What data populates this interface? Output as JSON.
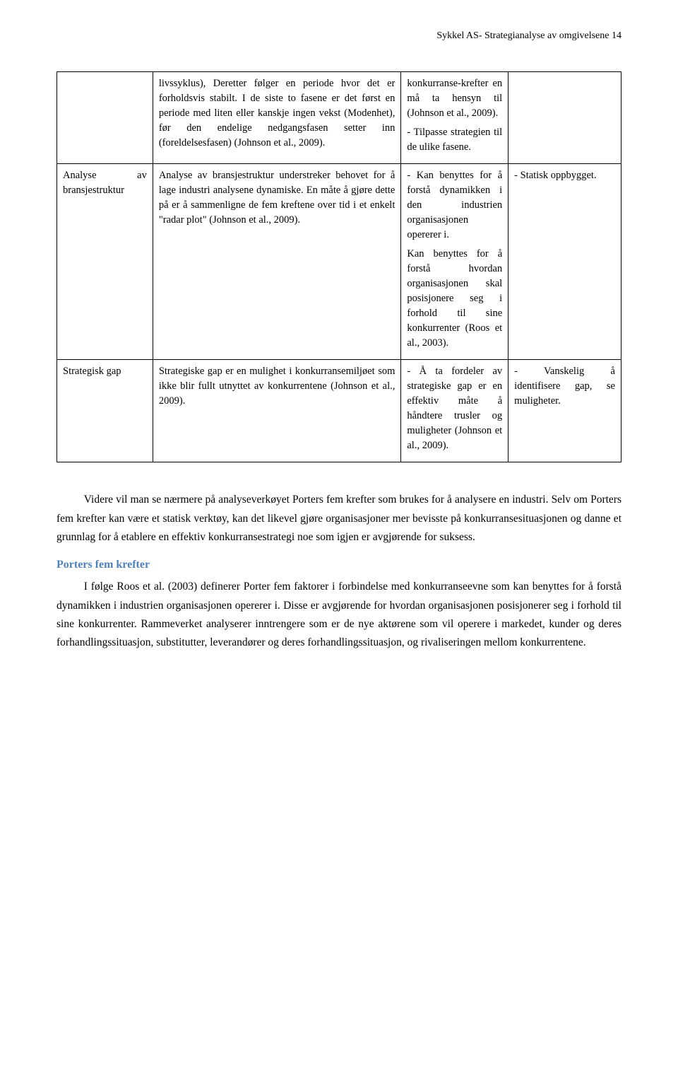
{
  "header": "Sykkel AS- Strategianalyse av omgivelsene   14",
  "table": {
    "rows": [
      {
        "c1": "",
        "c2": "livssyklus), Deretter følger en periode hvor det er forholdsvis stabilt. I de siste to fasene er det først en periode med liten eller kanskje ingen vekst (Modenhet), før den endelige nedgangsfasen setter inn (foreldelsesfasen) (Johnson et al., 2009).",
        "c3_p1": "konkurranse-krefter en må ta hensyn til (Johnson et al., 2009).",
        "c3_p2": "- Tilpasse strategien til de ulike fasene.",
        "c4": ""
      },
      {
        "c1": "Analyse av bransjestruktur",
        "c2": "Analyse av bransjestruktur understreker behovet for å lage industri analysene dynamiske. En måte å gjøre dette på er å sammenligne de fem kreftene over tid i et enkelt \"radar plot\" (Johnson et al., 2009).",
        "c3_p1": "- Kan benyttes for å forstå dynamikken i den industrien organisasjonen opererer i.",
        "c3_p2": "Kan benyttes for å forstå hvordan organisasjonen skal posisjonere seg i forhold til sine konkurrenter (Roos et al., 2003).",
        "c4": "- Statisk oppbygget."
      },
      {
        "c1": "Strategisk gap",
        "c2": "Strategiske gap er en mulighet i konkurransemiljøet som ikke blir fullt utnyttet av konkurrentene (Johnson et al., 2009).",
        "c3_p1": "- Å ta fordeler av strategiske gap er en effektiv måte å håndtere trusler og muligheter (Johnson et al., 2009).",
        "c3_p2": "",
        "c4": "- Vanskelig å identifisere gap, se muligheter."
      }
    ]
  },
  "body": {
    "p1": "Videre vil man se nærmere på analyseverkøyet Porters fem krefter som brukes for å analysere en industri. Selv om Porters fem krefter kan være et statisk verktøy, kan det likevel gjøre organisasjoner mer bevisste på konkurransesituasjonen og danne et grunnlag for å etablere en effektiv konkurransestrategi noe som igjen er avgjørende for suksess.",
    "h3": "Porters fem krefter",
    "p2": "I følge Roos et al. (2003) definerer Porter fem faktorer i forbindelse med konkurranseevne som kan benyttes for å forstå dynamikken i industrien organisasjonen opererer i. Disse er avgjørende for hvordan organisasjonen posisjonerer seg i forhold til sine konkurrenter. Rammeverket analyserer inntrengere som er de nye aktørene som vil operere i markedet, kunder og deres forhandlingssituasjon, substitutter, leverandører og deres forhandlingssituasjon, og rivaliseringen mellom konkurrentene."
  }
}
